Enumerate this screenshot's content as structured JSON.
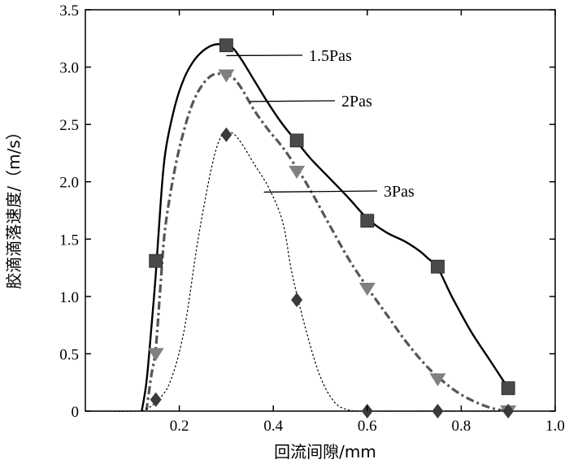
{
  "chart_data": {
    "type": "line",
    "xlabel": "回流间隙/mm",
    "ylabel": "胶滴滴落速度/（m/s）",
    "xlim": [
      0,
      1.0
    ],
    "ylim": [
      0,
      3.5
    ],
    "x_ticks": [
      "0.2",
      "0.4",
      "0.6",
      "0.8",
      "1.0"
    ],
    "x_tick_values": [
      0.2,
      0.4,
      0.6,
      0.8,
      1.0
    ],
    "y_ticks": [
      "0",
      "0.5",
      "1.0",
      "1.5",
      "2.0",
      "2.5",
      "3.0",
      "3.5"
    ],
    "y_tick_values": [
      0,
      0.5,
      1.0,
      1.5,
      2.0,
      2.5,
      3.0,
      3.5
    ],
    "grid": false,
    "series": [
      {
        "name": "1.5Pas",
        "marker": "square",
        "line_style": "solid",
        "color": "#000000",
        "marker_color": "#4a4a4a",
        "x": [
          0.15,
          0.3,
          0.45,
          0.6,
          0.75,
          0.9
        ],
        "values": [
          1.31,
          3.19,
          2.36,
          1.66,
          1.26,
          0.2
        ],
        "curve": [
          [
            0.12,
            0.0
          ],
          [
            0.13,
            0.25
          ],
          [
            0.14,
            0.7
          ],
          [
            0.15,
            1.2
          ],
          [
            0.16,
            1.8
          ],
          [
            0.17,
            2.25
          ],
          [
            0.19,
            2.65
          ],
          [
            0.21,
            2.9
          ],
          [
            0.23,
            3.05
          ],
          [
            0.25,
            3.14
          ],
          [
            0.27,
            3.19
          ],
          [
            0.29,
            3.2
          ],
          [
            0.31,
            3.18
          ],
          [
            0.33,
            3.08
          ],
          [
            0.36,
            2.88
          ],
          [
            0.39,
            2.68
          ],
          [
            0.42,
            2.5
          ],
          [
            0.45,
            2.35
          ],
          [
            0.48,
            2.2
          ],
          [
            0.52,
            2.03
          ],
          [
            0.56,
            1.86
          ],
          [
            0.6,
            1.68
          ],
          [
            0.64,
            1.56
          ],
          [
            0.68,
            1.48
          ],
          [
            0.71,
            1.4
          ],
          [
            0.73,
            1.33
          ],
          [
            0.75,
            1.25
          ],
          [
            0.78,
            1.0
          ],
          [
            0.82,
            0.7
          ],
          [
            0.86,
            0.45
          ],
          [
            0.9,
            0.2
          ]
        ]
      },
      {
        "name": "2Pas",
        "marker": "triangle-down",
        "line_style": "dashdot",
        "color": "#555555",
        "marker_color": "#808080",
        "x": [
          0.15,
          0.3,
          0.45,
          0.6,
          0.75,
          0.9
        ],
        "values": [
          0.5,
          2.93,
          2.09,
          1.07,
          0.28,
          0.0
        ],
        "curve": [
          [
            0.13,
            0.0
          ],
          [
            0.14,
            0.3
          ],
          [
            0.15,
            0.55
          ],
          [
            0.16,
            1.1
          ],
          [
            0.17,
            1.6
          ],
          [
            0.19,
            2.1
          ],
          [
            0.21,
            2.45
          ],
          [
            0.23,
            2.7
          ],
          [
            0.25,
            2.85
          ],
          [
            0.27,
            2.93
          ],
          [
            0.29,
            2.94
          ],
          [
            0.31,
            2.92
          ],
          [
            0.33,
            2.83
          ],
          [
            0.36,
            2.62
          ],
          [
            0.39,
            2.45
          ],
          [
            0.42,
            2.3
          ],
          [
            0.45,
            2.12
          ],
          [
            0.48,
            1.92
          ],
          [
            0.52,
            1.62
          ],
          [
            0.56,
            1.33
          ],
          [
            0.6,
            1.08
          ],
          [
            0.64,
            0.85
          ],
          [
            0.68,
            0.62
          ],
          [
            0.72,
            0.42
          ],
          [
            0.75,
            0.3
          ],
          [
            0.79,
            0.17
          ],
          [
            0.83,
            0.08
          ],
          [
            0.87,
            0.02
          ],
          [
            0.9,
            0.0
          ]
        ]
      },
      {
        "name": "3Pas",
        "marker": "diamond",
        "line_style": "dotted",
        "color": "#000000",
        "marker_color": "#3a3a3a",
        "x": [
          0.15,
          0.3,
          0.45,
          0.6,
          0.75,
          0.9
        ],
        "values": [
          0.1,
          2.41,
          0.97,
          0.0,
          0.0,
          0.0
        ],
        "curve": [
          [
            0.0,
            0.0
          ],
          [
            0.11,
            0.0
          ],
          [
            0.13,
            0.02
          ],
          [
            0.15,
            0.08
          ],
          [
            0.18,
            0.25
          ],
          [
            0.21,
            0.7
          ],
          [
            0.24,
            1.5
          ],
          [
            0.27,
            2.15
          ],
          [
            0.29,
            2.4
          ],
          [
            0.31,
            2.43
          ],
          [
            0.33,
            2.35
          ],
          [
            0.36,
            2.15
          ],
          [
            0.39,
            1.95
          ],
          [
            0.42,
            1.65
          ],
          [
            0.44,
            1.2
          ],
          [
            0.47,
            0.7
          ],
          [
            0.5,
            0.3
          ],
          [
            0.53,
            0.08
          ],
          [
            0.56,
            0.01
          ],
          [
            0.6,
            0.0
          ],
          [
            0.75,
            0.0
          ],
          [
            0.9,
            0.0
          ]
        ]
      }
    ],
    "annotations": [
      {
        "text": "1.5Pas",
        "series": 0,
        "point_x": 0.3,
        "point_y": 3.1
      },
      {
        "text": "2Pas",
        "series": 1,
        "point_x": 0.35,
        "point_y": 2.7
      },
      {
        "text": "3Pas",
        "series": 2,
        "point_x": 0.38,
        "point_y": 1.91
      }
    ]
  }
}
